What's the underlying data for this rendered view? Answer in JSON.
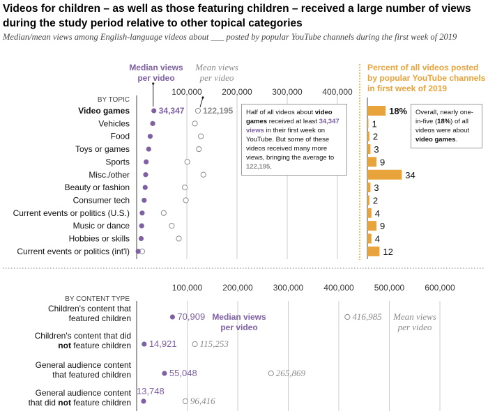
{
  "title": "Videos for children – as well as those featuring children – received a large number of views during the study period relative to other topical categories",
  "subtitle": "Median/mean views among English-language videos about ___ posted by popular YouTube channels during the first week of 2019",
  "colors": {
    "median": "#7e60a3",
    "mean": "#8a8a8a",
    "bar": "#e8a33a",
    "axis": "#444444",
    "grid": "#cccccc"
  },
  "legend": {
    "median_label": "Median views per video",
    "mean_label": "Mean views per video",
    "percent_title": "Percent of all videos posted by popular YouTube channels in first week of 2019"
  },
  "chart_data": [
    {
      "type": "scatter",
      "section_label": "BY TOPIC",
      "ticks": [
        "100,000",
        "200,000",
        "300,000",
        "400,000"
      ],
      "xlim": [
        0,
        400000
      ],
      "tick_values": [
        100000,
        200000,
        300000,
        400000
      ],
      "categories": [
        "Video games",
        "Vehicles",
        "Food",
        "Toys or games",
        "Sports",
        "Misc./other",
        "Beauty or fashion",
        "Consumer tech",
        "Current events or politics (U.S.)",
        "Music or dance",
        "Hobbies or skills",
        "Current events or politics (int'l)"
      ],
      "series": [
        {
          "name": "Median views per video",
          "values": [
            34347,
            32000,
            27000,
            24000,
            19000,
            18000,
            17000,
            15000,
            11000,
            10000,
            9000,
            3000
          ]
        },
        {
          "name": "Mean views per video",
          "values": [
            122195,
            116000,
            128000,
            124000,
            101000,
            133000,
            96000,
            98000,
            54000,
            70000,
            84000,
            11000
          ]
        }
      ],
      "point_labels": {
        "median_value": "34,347",
        "mean_value": "122,195"
      },
      "annotation": {
        "p1": "Half of all videos about ",
        "b1": "video games",
        "p2": " received at least ",
        "m": "34,347 views",
        "p3": " in their first week on YouTube. But some of these videos received many more views, bringing the average to ",
        "g": "122,195",
        "p4": "."
      }
    },
    {
      "type": "bar",
      "title": "Percent of all videos posted by popular YouTube channels in first week of 2019",
      "categories": [
        "Video games",
        "Vehicles",
        "Food",
        "Toys or games",
        "Sports",
        "Misc./other",
        "Beauty or fashion",
        "Consumer tech",
        "Current events or politics (U.S.)",
        "Music or dance",
        "Hobbies or skills",
        "Current events or politics (int'l)"
      ],
      "values": [
        18,
        1,
        2,
        3,
        9,
        34,
        3,
        2,
        4,
        9,
        4,
        12
      ],
      "labels": [
        "18%",
        "1",
        "2",
        "3",
        "9",
        "34",
        "3",
        "2",
        "4",
        "9",
        "4",
        "12"
      ],
      "note": {
        "p1": "Overall, nearly one-in-five (",
        "b1": "18%",
        "p2": ") of all videos were about ",
        "b2": "video games",
        "p3": "."
      }
    },
    {
      "type": "scatter",
      "section_label": "BY CONTENT TYPE",
      "ticks": [
        "100,000",
        "200,000",
        "300,000",
        "400,000",
        "500,000",
        "600,000"
      ],
      "tick_values": [
        100000,
        200000,
        300000,
        400000,
        500000,
        600000
      ],
      "xlim": [
        0,
        600000
      ],
      "categories": [
        [
          "Children's content that",
          "featured children"
        ],
        [
          "Children's content that did",
          "not feature children"
        ],
        [
          "General audience content",
          "that featured children"
        ],
        [
          "General audience content",
          "that did not feature children"
        ]
      ],
      "series": [
        {
          "name": "Median views per video",
          "values": [
            70909,
            14921,
            55048,
            13748
          ],
          "labels": [
            "70,909",
            "14,921",
            "55,048",
            "13,748"
          ]
        },
        {
          "name": "Mean views per video",
          "values": [
            416985,
            115253,
            265869,
            96416
          ],
          "labels": [
            "416,985",
            "115,253",
            "265,869",
            "96,416"
          ]
        }
      ]
    }
  ]
}
